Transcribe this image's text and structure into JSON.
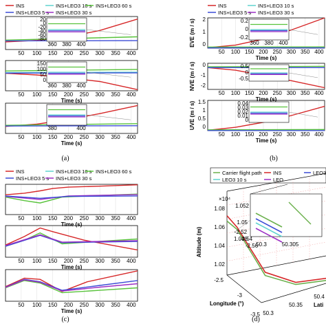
{
  "colors": {
    "INS": "#d62728",
    "INS+LEO3 5 s": "#3b4bd6",
    "INS+LEO3 10 s": "#5fd3cf",
    "INS+LEO3 30 s": "#9b2fc4",
    "INS+LEO3 60 s": "#57c23a",
    "Carrier flight path": "#6ab04c",
    "LEO3 5 s": "#3b4bd6",
    "LEO3 10 s": "#5fd3cf",
    "grid": "#dddddd"
  },
  "chart_data": [
    {
      "id": "a",
      "caption": "(a)",
      "type": "line",
      "legend": [
        "INS",
        "INS+LEO3 10 s",
        "INS+LEO3 60 s",
        "INS+LEO3 5 s",
        "INS+LEO3 30 s"
      ],
      "legend_position": "top",
      "xlabel": "Time (s)",
      "xticks": [
        "50",
        "100",
        "150",
        "200",
        "250",
        "300",
        "350",
        "400"
      ],
      "xlim": [
        0,
        420
      ],
      "subplots": [
        {
          "inset_yticks": [
            "20",
            "0",
            "-20",
            "-40",
            "-60",
            "-80"
          ],
          "inset_xticks": [
            "360",
            "380",
            "400"
          ],
          "xlabel": "",
          "series": [
            {
              "name": "INS",
              "x": [
                0,
                100,
                200,
                300,
                420
              ],
              "y": [
                0,
                0.06,
                0.2,
                0.45,
                0.9
              ]
            },
            {
              "name": "INS+LEO3 60 s",
              "x": [
                0,
                100,
                200,
                420
              ],
              "y": [
                0.07,
                0.1,
                0.13,
                0.2
              ]
            },
            {
              "name": "INS+LEO3 5 s",
              "x": [
                0,
                420
              ],
              "y": [
                0.04,
                0.05
              ]
            }
          ]
        },
        {
          "inset_yticks": [
            "150",
            "100",
            "50",
            "0"
          ],
          "inset_xticks": [
            "360",
            "380",
            "400"
          ],
          "xlabel": "Time (s)",
          "series": [
            {
              "name": "INS",
              "x": [
                0,
                100,
                200,
                300,
                420
              ],
              "y": [
                0.45,
                0.38,
                0.25,
                0.1,
                -0.25
              ]
            },
            {
              "name": "INS+LEO3 60 s",
              "x": [
                0,
                420
              ],
              "y": [
                0.55,
                0.62
              ]
            },
            {
              "name": "INS+LEO3 10 s",
              "x": [
                0,
                420
              ],
              "y": [
                0.48,
                0.5
              ]
            },
            {
              "name": "INS+LEO3 5 s",
              "x": [
                0,
                420
              ],
              "y": [
                0.46,
                0.47
              ]
            }
          ]
        },
        {
          "inset_yticks": [],
          "inset_xticks": [
            "380",
            "400"
          ],
          "xlabel": "Time (s)",
          "series": [
            {
              "name": "INS",
              "x": [
                0,
                100,
                200,
                300,
                420
              ],
              "y": [
                0,
                0.1,
                0.3,
                0.55,
                0.9
              ]
            },
            {
              "name": "INS+LEO3 60 s",
              "x": [
                0,
                420
              ],
              "y": [
                0.05,
                0.12
              ]
            },
            {
              "name": "INS+LEO3 5 s",
              "x": [
                0,
                420
              ],
              "y": [
                0.02,
                0.03
              ]
            }
          ]
        }
      ]
    },
    {
      "id": "b",
      "caption": "(b)",
      "type": "line",
      "legend": [
        "INS",
        "INS+LEO3 10 s",
        "INS+LEO3 5 s",
        "INS+LEO3 30 s"
      ],
      "legend_position": "top",
      "xticks": [
        "50",
        "100",
        "150",
        "200",
        "250",
        "300",
        "350",
        "400"
      ],
      "xlim": [
        0,
        420
      ],
      "subplots": [
        {
          "ylabel": "EVE (m / s)",
          "yticks": [
            "2",
            "1",
            "0"
          ],
          "ylim": [
            0,
            3
          ],
          "inset_yticks": [
            "0.2",
            "0",
            "-0.2"
          ],
          "inset_xticks": [
            "360",
            "380",
            "400"
          ],
          "xlabel": "Time (s)",
          "series": [
            {
              "name": "INS",
              "x": [
                0,
                100,
                200,
                300,
                420
              ],
              "y": [
                0.05,
                0.3,
                0.9,
                1.8,
                3.0
              ]
            },
            {
              "name": "INS+LEO3 60 s",
              "x": [
                0,
                420
              ],
              "y": [
                0.1,
                0.12
              ]
            },
            {
              "name": "INS+LEO3 5 s",
              "x": [
                0,
                420
              ],
              "y": [
                0.03,
                0.03
              ]
            }
          ]
        },
        {
          "ylabel": "NVE (m / s)",
          "yticks": [
            "0",
            "-1",
            "-2"
          ],
          "ylim": [
            -2.5,
            0.5
          ],
          "inset_yticks": [
            "0.5",
            "0",
            "-0.5"
          ],
          "xlabel": "Time (s)",
          "series": [
            {
              "name": "INS",
              "x": [
                0,
                100,
                200,
                300,
                420
              ],
              "y": [
                0,
                -0.3,
                -0.9,
                -1.5,
                -2.3
              ]
            },
            {
              "name": "INS+LEO3 60 s",
              "x": [
                0,
                420
              ],
              "y": [
                0.1,
                0.15
              ]
            },
            {
              "name": "INS+LEO3 5 s",
              "x": [
                0,
                420
              ],
              "y": [
                0,
                0
              ]
            }
          ]
        },
        {
          "ylabel": "UVE (m / s)",
          "yticks": [
            "1.5",
            "1",
            "0.5",
            "0"
          ],
          "ylim": [
            0,
            1.8
          ],
          "inset_yticks": [
            "0.04",
            "0.03",
            "0.02",
            "0.01",
            "0"
          ],
          "xlabel": "Time (s)",
          "series": [
            {
              "name": "INS",
              "x": [
                0,
                100,
                200,
                300,
                420
              ],
              "y": [
                0.02,
                0.2,
                0.5,
                0.9,
                1.45
              ]
            },
            {
              "name": "INS+LEO3 60 s",
              "x": [
                0,
                420
              ],
              "y": [
                0.05,
                0.07
              ]
            },
            {
              "name": "INS+LEO3 5 s",
              "x": [
                0,
                420
              ],
              "y": [
                0.01,
                0.01
              ]
            }
          ]
        }
      ]
    },
    {
      "id": "c",
      "caption": "(c)",
      "type": "line",
      "legend": [
        "INS",
        "INS+LEO3 10 s",
        "INS+LEO3 60 s",
        "INS+LEO3 5 s",
        "INS+LEO3 30 s"
      ],
      "legend_position": "top",
      "xticks": [
        "50",
        "100",
        "150",
        "200",
        "250",
        "300",
        "350",
        "400"
      ],
      "xlim": [
        0,
        420
      ],
      "subplots": [
        {
          "xlabel": "Time (s)",
          "series": [
            {
              "name": "INS",
              "x": [
                0,
                60,
                110,
                150,
                200,
                300,
                420
              ],
              "y": [
                0.55,
                0.62,
                0.72,
                0.82,
                0.88,
                0.92,
                0.98
              ]
            },
            {
              "name": "INS+LEO3 60 s",
              "x": [
                0,
                60,
                110,
                180,
                300,
                420
              ],
              "y": [
                0.45,
                0.3,
                0.2,
                0.45,
                0.52,
                0.58
              ]
            },
            {
              "name": "INS+LEO3 30 s",
              "x": [
                0,
                110,
                200,
                420
              ],
              "y": [
                0.48,
                0.35,
                0.5,
                0.56
              ]
            },
            {
              "name": "INS+LEO3 5 s",
              "x": [
                0,
                110,
                200,
                420
              ],
              "y": [
                0.5,
                0.4,
                0.48,
                0.5
              ]
            }
          ]
        },
        {
          "xlabel": "Time (s)",
          "series": [
            {
              "name": "INS",
              "x": [
                0,
                60,
                110,
                150,
                250,
                420
              ],
              "y": [
                0.2,
                0.55,
                0.9,
                0.75,
                0.4,
                0.0
              ]
            },
            {
              "name": "INS+LEO3 60 s",
              "x": [
                0,
                60,
                110,
                180,
                300,
                420
              ],
              "y": [
                0.15,
                0.4,
                0.7,
                0.25,
                0.35,
                0.45
              ]
            },
            {
              "name": "INS+LEO3 5 s",
              "x": [
                0,
                110,
                180,
                420
              ],
              "y": [
                0.15,
                0.6,
                0.3,
                0.35
              ]
            },
            {
              "name": "INS+LEO3 30 s",
              "x": [
                0,
                110,
                180,
                420
              ],
              "y": [
                0.18,
                0.62,
                0.32,
                0.38
              ]
            }
          ]
        },
        {
          "xlabel": "Time (s)",
          "series": [
            {
              "name": "INS",
              "x": [
                0,
                60,
                110,
                180,
                260,
                420
              ],
              "y": [
                0.3,
                0.65,
                0.6,
                0.1,
                0.5,
                0.95
              ]
            },
            {
              "name": "INS+LEO3 60 s",
              "x": [
                0,
                60,
                110,
                180,
                300,
                420
              ],
              "y": [
                0.25,
                0.55,
                0.45,
                0.05,
                0.15,
                0.25
              ]
            },
            {
              "name": "INS+LEO3 5 s",
              "x": [
                0,
                60,
                110,
                180,
                300,
                420
              ],
              "y": [
                0.28,
                0.6,
                0.5,
                0.15,
                0.35,
                0.55
              ]
            },
            {
              "name": "INS+LEO3 30 s",
              "x": [
                0,
                60,
                110,
                180,
                300,
                420
              ],
              "y": [
                0.27,
                0.58,
                0.48,
                0.12,
                0.28,
                0.42
              ]
            }
          ]
        }
      ]
    },
    {
      "id": "d",
      "caption": "(d)",
      "type": "line",
      "legend": [
        "Carrier flight path",
        "INS",
        "LEO3 5 s",
        "LEO3 10 s",
        "LEO"
      ],
      "legend_position": "top",
      "zlabel": "Altitude (m)",
      "zexponent": "×10⁴",
      "zticks": [
        "1.08",
        "1.06",
        "1.04",
        "1.02"
      ],
      "xlabel": "Longitude (°)",
      "xticks": [
        "-2.5",
        "-3",
        "-3.5"
      ],
      "ylabel": "Lati",
      "yticks": [
        "50.3",
        "50.35",
        "50.4"
      ],
      "inset_zticks": [
        "1.052",
        "1.05",
        "1.048"
      ],
      "inset_xticks": [
        "-2.52",
        "-2.54",
        "-2.56"
      ],
      "inset_yticks": [
        "50.3",
        "50.305"
      ],
      "series": [
        {
          "name": "INS",
          "points": [
            [
              -2.5,
              50.3,
              1.07
            ],
            [
              -2.6,
              50.31,
              1.06
            ],
            [
              -3.0,
              50.33,
              1.025
            ],
            [
              -3.3,
              50.36,
              1.018
            ],
            [
              -3.5,
              50.4,
              1.02
            ]
          ]
        },
        {
          "name": "Carrier flight path",
          "points": [
            [
              -2.5,
              50.3,
              1.065
            ],
            [
              -2.6,
              50.31,
              1.058
            ],
            [
              -3.0,
              50.33,
              1.022
            ],
            [
              -3.3,
              50.36,
              1.016
            ],
            [
              -3.5,
              50.4,
              1.018
            ]
          ]
        }
      ]
    }
  ]
}
